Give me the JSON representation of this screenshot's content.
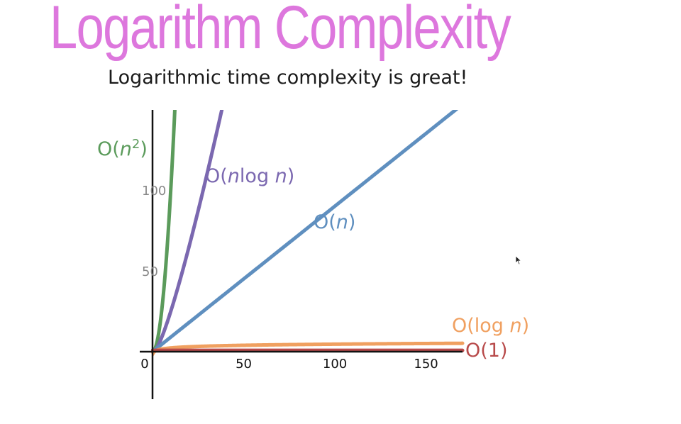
{
  "title": "Logarithm Complexity",
  "subtitle": "Logarithmic time complexity is great!",
  "chart_data": {
    "type": "line",
    "xlim": [
      0,
      170
    ],
    "ylim": [
      -35,
      175
    ],
    "x_ticks": [
      0,
      50,
      100,
      150
    ],
    "x_tick_labels": [
      "0",
      "50",
      "100",
      "150"
    ],
    "y_ticks": [
      50,
      100
    ],
    "y_tick_labels": [
      "50",
      "100"
    ],
    "grid": false,
    "series": [
      {
        "name": "O(n²)",
        "label_parts": [
          "O(",
          "n",
          "²)"
        ],
        "func": "n2",
        "color": "#5b9b5b"
      },
      {
        "name": "O(nlog n)",
        "label_parts": [
          "O(",
          "n",
          "log ",
          "n",
          ")"
        ],
        "func": "nlogn",
        "color": "#7b68b0"
      },
      {
        "name": "O(n)",
        "label_parts": [
          "O(",
          "n",
          ")"
        ],
        "func": "n",
        "color": "#5f8fbf"
      },
      {
        "name": "O(log n)",
        "label_parts": [
          "O(log ",
          "n",
          ")"
        ],
        "func": "logn",
        "color": "#f0a060"
      },
      {
        "name": "O(1)",
        "label_parts": [
          "O(1)"
        ],
        "func": "const",
        "color": "#b84a4a"
      }
    ]
  },
  "colors": {
    "title": "#dd77dd",
    "axis": "#111111"
  }
}
